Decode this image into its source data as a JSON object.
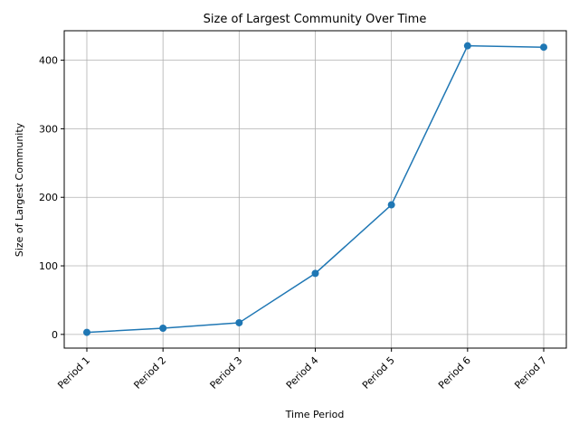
{
  "chart_data": {
    "type": "line",
    "title": "Size of Largest Community Over Time",
    "xlabel": "Time Period",
    "ylabel": "Size of Largest Community",
    "categories": [
      "Period 1",
      "Period 2",
      "Period 3",
      "Period 4",
      "Period 5",
      "Period 6",
      "Period 7"
    ],
    "series": [
      {
        "values": [
          3,
          9,
          17,
          89,
          189,
          421,
          419
        ]
      }
    ],
    "ylim": [
      -20,
      443
    ],
    "yticks": [
      0,
      100,
      200,
      300,
      400
    ],
    "grid": true,
    "color": "#1f77b4"
  }
}
